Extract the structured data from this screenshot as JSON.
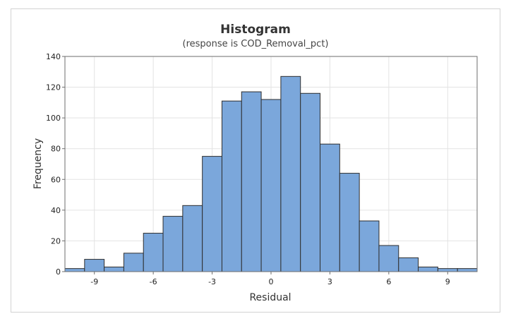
{
  "chart_data": {
    "type": "bar",
    "title": "Histogram",
    "subtitle": "(response is COD_Removal_pct)",
    "xlabel": "Residual",
    "ylabel": "Frequency",
    "bin_width": 1,
    "bin_centers": [
      -10,
      -9,
      -8,
      -7,
      -6,
      -5,
      -4,
      -3,
      -2,
      -1,
      0,
      1,
      2,
      3,
      4,
      5,
      6,
      7,
      8,
      9,
      10
    ],
    "values": [
      2,
      8,
      3,
      12,
      25,
      36,
      43,
      75,
      111,
      117,
      112,
      127,
      116,
      83,
      64,
      33,
      17,
      9,
      3,
      2,
      2
    ],
    "xlim": [
      -10.5,
      10.5
    ],
    "ylim": [
      0,
      140
    ],
    "x_ticks": [
      -9,
      -6,
      -3,
      0,
      3,
      6,
      9
    ],
    "y_ticks": [
      0,
      20,
      40,
      60,
      80,
      100,
      120,
      140
    ],
    "grid": true,
    "bar_color": "#7ba7db"
  }
}
